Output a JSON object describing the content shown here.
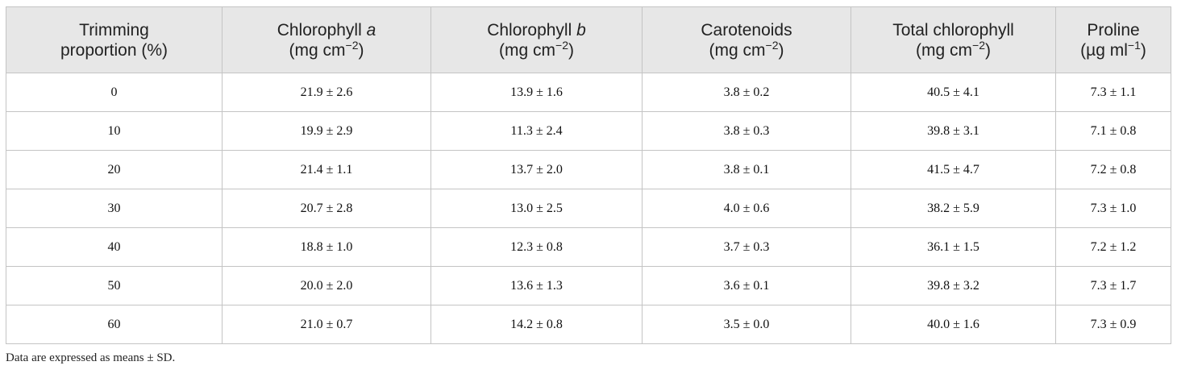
{
  "table": {
    "header": [
      [
        [
          "Trimming"
        ],
        [
          "proportion (%)"
        ]
      ],
      [
        [
          "Chlorophyll ",
          {
            "i": "a"
          }
        ],
        [
          "(mg cm",
          {
            "sup": "−2"
          },
          ")"
        ]
      ],
      [
        [
          "Chlorophyll ",
          {
            "i": "b"
          }
        ],
        [
          "(mg cm",
          {
            "sup": "−2"
          },
          ")"
        ]
      ],
      [
        [
          "Carotenoids"
        ],
        [
          "(mg cm",
          {
            "sup": "−2"
          },
          ")"
        ]
      ],
      [
        [
          "Total chlorophyll"
        ],
        [
          "(mg cm",
          {
            "sup": "−2"
          },
          ")"
        ]
      ],
      [
        [
          "Proline"
        ],
        [
          "(µg ml",
          {
            "sup": "−1"
          },
          ")"
        ]
      ]
    ],
    "rows": [
      [
        "0",
        "21.9 ± 2.6",
        "13.9 ± 1.6",
        "3.8 ± 0.2",
        "40.5 ± 4.1",
        "7.3 ± 1.1"
      ],
      [
        "10",
        "19.9 ± 2.9",
        "11.3 ± 2.4",
        "3.8 ± 0.3",
        "39.8 ± 3.1",
        "7.1 ± 0.8"
      ],
      [
        "20",
        "21.4 ± 1.1",
        "13.7 ± 2.0",
        "3.8 ± 0.1",
        "41.5 ± 4.7",
        "7.2 ± 0.8"
      ],
      [
        "30",
        "20.7 ± 2.8",
        "13.0 ± 2.5",
        "4.0 ± 0.6",
        "38.2 ± 5.9",
        "7.3 ± 1.0"
      ],
      [
        "40",
        "18.8 ± 1.0",
        "12.3 ± 0.8",
        "3.7 ± 0.3",
        "36.1 ± 1.5",
        "7.2 ± 1.2"
      ],
      [
        "50",
        "20.0 ± 2.0",
        "13.6 ± 1.3",
        "3.6 ± 0.1",
        "39.8 ± 3.2",
        "7.3 ± 1.7"
      ],
      [
        "60",
        "21.0 ± 0.7",
        "14.2 ± 0.8",
        "3.5 ± 0.0",
        "40.0 ± 1.6",
        "7.3 ± 0.9"
      ]
    ]
  },
  "footnote": "Data are expressed as means ± SD."
}
